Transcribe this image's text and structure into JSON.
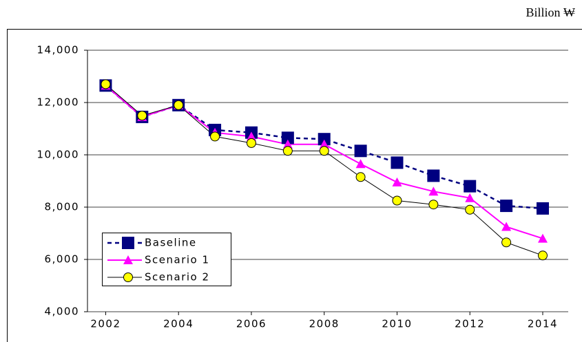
{
  "chart_data": {
    "type": "line",
    "annotation": "Billion ₩",
    "x": [
      2002,
      2003,
      2004,
      2005,
      2006,
      2007,
      2008,
      2009,
      2010,
      2011,
      2012,
      2013,
      2014
    ],
    "series": [
      {
        "name": "Baseline",
        "color": "#000080",
        "marker": "square",
        "dash": true,
        "values": [
          12650,
          11450,
          11900,
          10950,
          10850,
          10650,
          10600,
          10150,
          9700,
          9200,
          8800,
          8050,
          7950
        ]
      },
      {
        "name": "Scenario 1",
        "color": "#ff00ff",
        "marker": "triangle",
        "dash": false,
        "values": [
          12650,
          11450,
          11900,
          10850,
          10700,
          10400,
          10400,
          9650,
          8950,
          8600,
          8350,
          7250,
          6800
        ]
      },
      {
        "name": "Scenario 2",
        "color": "#000000",
        "marker_fill": "#ffff00",
        "marker": "circle",
        "dash": false,
        "values": [
          12700,
          11500,
          11900,
          10700,
          10450,
          10150,
          10150,
          9150,
          8250,
          8100,
          7900,
          6650,
          6150
        ]
      }
    ],
    "xlim": [
      2001.5,
      2014.7
    ],
    "xticks": [
      2002,
      2004,
      2006,
      2008,
      2010,
      2012,
      2014
    ],
    "ylim": [
      4000,
      14000
    ],
    "yticks": [
      {
        "value": 4000,
        "label": "4,000"
      },
      {
        "value": 6000,
        "label": "6,000"
      },
      {
        "value": 8000,
        "label": "8,000"
      },
      {
        "value": 10000,
        "label": "10,000"
      },
      {
        "value": 12000,
        "label": "12,000"
      },
      {
        "value": 14000,
        "label": "14,000"
      }
    ],
    "grid": true,
    "legend": "lower-left"
  }
}
